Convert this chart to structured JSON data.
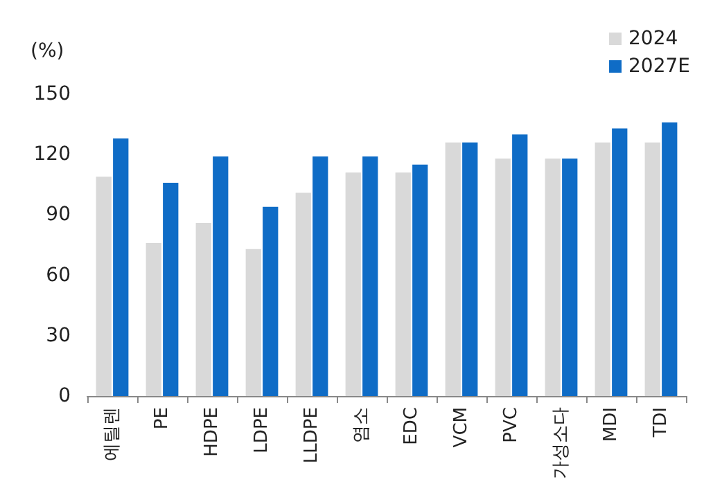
{
  "chart_data": {
    "type": "bar",
    "ylabel": "(%)",
    "categories": [
      "에틸렌",
      "PE",
      "HDPE",
      "LDPE",
      "LLDPE",
      "염소",
      "EDC",
      "VCM",
      "PVC",
      "가성소다",
      "MDI",
      "TDI"
    ],
    "series": [
      {
        "name": "2024",
        "color": "#d9d9d9",
        "values": [
          109,
          76,
          86,
          73,
          101,
          111,
          111,
          126,
          118,
          118,
          126,
          126
        ]
      },
      {
        "name": "2027E",
        "color": "#0f6cc6",
        "values": [
          128,
          106,
          119,
          94,
          119,
          119,
          115,
          126,
          130,
          118,
          133,
          136
        ]
      }
    ],
    "ylim": [
      0,
      150
    ],
    "yticks": [
      0,
      30,
      60,
      90,
      120,
      150
    ],
    "grid": false,
    "legend": "top right"
  }
}
